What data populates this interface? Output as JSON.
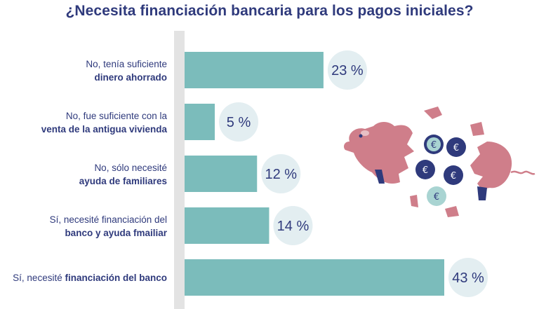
{
  "chart_data": {
    "type": "bar",
    "orientation": "horizontal",
    "title": "¿Necesita financiación bancaria para los pagos iniciales?",
    "categories": [
      {
        "line1": "No, tenía suficiente",
        "line2_pre": "",
        "line2_bold": "dinero ahorrado"
      },
      {
        "line1": "No, fue suficiente con la",
        "line2_pre": "",
        "line2_bold": "venta de la antigua vivienda"
      },
      {
        "line1": "No, sólo necesité",
        "line2_pre": "",
        "line2_bold": "ayuda de familiares"
      },
      {
        "line1": "Sí, necesité financiación del",
        "line2_pre": "",
        "line2_bold": "banco y ayuda fmailiar"
      },
      {
        "line1": "",
        "line2_pre": "Sí, necesité ",
        "line2_bold": "financiación del banco"
      }
    ],
    "values": [
      23,
      5,
      12,
      14,
      43
    ],
    "value_labels": [
      "23 %",
      "5 %",
      "12 %",
      "14 %",
      "43 %"
    ],
    "xlim": [
      0,
      43
    ],
    "colors": {
      "bar": "#7bbcbb",
      "bubble": "#e3eef1",
      "label": "#2f3a7c",
      "axis": "#e3e3e3"
    }
  },
  "illustration": {
    "name": "broken-piggy-bank-euro-coins",
    "pig_color": "#cf7e8a",
    "coin_color": "#2f3a7c",
    "coin_light": "#a9d4d2"
  }
}
